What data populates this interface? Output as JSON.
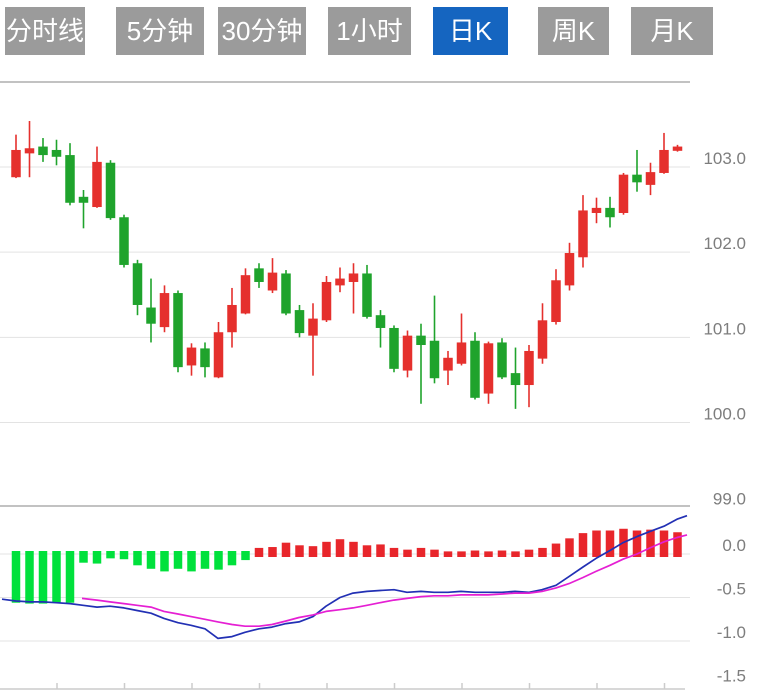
{
  "tabs": {
    "items": [
      {
        "label": "分时线",
        "active": false
      },
      {
        "label": "5分钟",
        "active": false
      },
      {
        "label": "30分钟",
        "active": false
      },
      {
        "label": "1小时",
        "active": false
      },
      {
        "label": "日K",
        "active": true
      },
      {
        "label": "周K",
        "active": false
      },
      {
        "label": "月K",
        "active": false
      }
    ]
  },
  "colors": {
    "tab_bg": "#9b9b9b",
    "tab_active_bg": "#1565c0",
    "candle_up": "#e5302d",
    "candle_down": "#1fa32c",
    "hist_up": "#e8262b",
    "hist_down": "#00e13c",
    "dif_line": "#2230b4",
    "dea_line": "#e51fd3",
    "gridline": "#e3e3e3",
    "pane_border": "#adadad",
    "axis_line": "#cccccc",
    "axis_label": "#7d7d7d"
  },
  "chart_data": {
    "type": "candlestick",
    "title": "日K candlestick chart with MACD sub-chart",
    "legend_position": "none",
    "grid": true,
    "panes": [
      {
        "name": "price",
        "ylim": [
          99.0,
          104.0
        ],
        "gridline_values": [
          103,
          102,
          101,
          100
        ],
        "axis_labels": [
          "103.0",
          "102.0",
          "101.0",
          "100.0",
          "99.0"
        ]
      },
      {
        "name": "macd",
        "ylim": [
          -1.55,
          0.45
        ],
        "gridline_values": [
          0,
          -0.5,
          -1.0
        ],
        "axis_labels": [
          "0.0",
          "-0.5",
          "-1.0",
          "-1.5"
        ]
      }
    ],
    "candles_ohlc": [
      [
        102.88,
        103.38,
        102.87,
        103.2
      ],
      [
        103.16,
        103.54,
        102.88,
        103.22
      ],
      [
        103.24,
        103.34,
        103.06,
        103.14
      ],
      [
        103.2,
        103.32,
        103.02,
        103.12
      ],
      [
        103.14,
        103.28,
        102.55,
        102.58
      ],
      [
        102.65,
        102.73,
        102.28,
        102.58
      ],
      [
        102.53,
        103.24,
        102.52,
        103.06
      ],
      [
        103.05,
        103.08,
        102.38,
        102.4
      ],
      [
        102.41,
        102.44,
        101.82,
        101.85
      ],
      [
        101.87,
        101.91,
        101.26,
        101.38
      ],
      [
        101.35,
        101.69,
        100.94,
        101.16
      ],
      [
        101.12,
        101.61,
        101.06,
        101.52
      ],
      [
        101.52,
        101.55,
        100.59,
        100.65
      ],
      [
        100.67,
        100.93,
        100.55,
        100.88
      ],
      [
        100.87,
        100.94,
        100.53,
        100.65
      ],
      [
        100.53,
        101.18,
        100.52,
        101.06
      ],
      [
        101.06,
        101.58,
        100.88,
        101.38
      ],
      [
        101.28,
        101.81,
        101.27,
        101.73
      ],
      [
        101.81,
        101.87,
        101.58,
        101.65
      ],
      [
        101.55,
        101.93,
        101.52,
        101.76
      ],
      [
        101.75,
        101.79,
        101.26,
        101.28
      ],
      [
        101.32,
        101.38,
        101.0,
        101.05
      ],
      [
        101.02,
        101.4,
        100.55,
        101.22
      ],
      [
        101.2,
        101.72,
        101.18,
        101.65
      ],
      [
        101.61,
        101.82,
        101.53,
        101.69
      ],
      [
        101.65,
        101.87,
        101.28,
        101.75
      ],
      [
        101.75,
        101.85,
        101.22,
        101.24
      ],
      [
        101.26,
        101.32,
        100.88,
        101.11
      ],
      [
        101.11,
        101.14,
        100.59,
        100.63
      ],
      [
        100.61,
        101.08,
        100.53,
        101.02
      ],
      [
        101.02,
        101.16,
        100.22,
        100.91
      ],
      [
        100.96,
        101.49,
        100.46,
        100.52
      ],
      [
        100.61,
        100.84,
        100.44,
        100.76
      ],
      [
        100.69,
        101.28,
        100.67,
        100.94
      ],
      [
        100.96,
        101.06,
        100.27,
        100.29
      ],
      [
        100.34,
        100.95,
        100.22,
        100.93
      ],
      [
        100.94,
        100.99,
        100.51,
        100.53
      ],
      [
        100.58,
        100.88,
        100.16,
        100.44
      ],
      [
        100.44,
        100.91,
        100.18,
        100.84
      ],
      [
        100.75,
        101.4,
        100.69,
        101.2
      ],
      [
        101.18,
        101.8,
        101.15,
        101.67
      ],
      [
        101.61,
        102.11,
        101.55,
        101.99
      ],
      [
        101.94,
        102.67,
        101.82,
        102.49
      ],
      [
        102.46,
        102.64,
        102.34,
        102.52
      ],
      [
        102.52,
        102.65,
        102.29,
        102.41
      ],
      [
        102.46,
        102.93,
        102.44,
        102.91
      ],
      [
        102.91,
        103.2,
        102.71,
        102.82
      ],
      [
        102.79,
        103.05,
        102.67,
        102.94
      ],
      [
        102.93,
        103.4,
        102.92,
        103.2
      ],
      [
        103.19,
        103.26,
        103.18,
        103.24
      ]
    ],
    "macd_histogram": [
      -0.56,
      -0.57,
      -0.57,
      -0.56,
      -0.56,
      -0.1,
      -0.11,
      -0.05,
      -0.06,
      -0.13,
      -0.17,
      -0.2,
      -0.17,
      -0.2,
      -0.17,
      -0.18,
      -0.13,
      -0.07,
      0.07,
      0.08,
      0.13,
      0.1,
      0.09,
      0.14,
      0.17,
      0.14,
      0.1,
      0.11,
      0.07,
      0.05,
      0.07,
      0.05,
      0.03,
      0.03,
      0.04,
      0.03,
      0.04,
      0.03,
      0.05,
      0.07,
      0.12,
      0.18,
      0.24,
      0.27,
      0.27,
      0.29,
      0.27,
      0.28,
      0.27,
      0.25
    ],
    "dif_line": [
      [
        2,
        -0.52
      ],
      [
        16,
        -0.54
      ],
      [
        30,
        -0.55
      ],
      [
        43,
        -0.55
      ],
      [
        56,
        -0.56
      ],
      [
        70,
        -0.57
      ],
      [
        83,
        -0.59
      ],
      [
        97,
        -0.61
      ],
      [
        110,
        -0.6
      ],
      [
        124,
        -0.62
      ],
      [
        137,
        -0.65
      ],
      [
        151,
        -0.68
      ],
      [
        164,
        -0.74
      ],
      [
        178,
        -0.79
      ],
      [
        191,
        -0.82
      ],
      [
        205,
        -0.86
      ],
      [
        218,
        -0.97
      ],
      [
        232,
        -0.95
      ],
      [
        245,
        -0.9
      ],
      [
        259,
        -0.86
      ],
      [
        272,
        -0.84
      ],
      [
        286,
        -0.8
      ],
      [
        299,
        -0.78
      ],
      [
        313,
        -0.72
      ],
      [
        326,
        -0.6
      ],
      [
        340,
        -0.5
      ],
      [
        353,
        -0.45
      ],
      [
        367,
        -0.43
      ],
      [
        380,
        -0.42
      ],
      [
        394,
        -0.41
      ],
      [
        407,
        -0.44
      ],
      [
        421,
        -0.43
      ],
      [
        434,
        -0.44
      ],
      [
        448,
        -0.44
      ],
      [
        461,
        -0.43
      ],
      [
        475,
        -0.44
      ],
      [
        488,
        -0.44
      ],
      [
        502,
        -0.44
      ],
      [
        515,
        -0.43
      ],
      [
        529,
        -0.44
      ],
      [
        542,
        -0.41
      ],
      [
        556,
        -0.36
      ],
      [
        569,
        -0.26
      ],
      [
        583,
        -0.15
      ],
      [
        596,
        -0.05
      ],
      [
        610,
        0.04
      ],
      [
        623,
        0.13
      ],
      [
        637,
        0.2
      ],
      [
        650,
        0.26
      ],
      [
        664,
        0.32
      ],
      [
        677,
        0.4
      ],
      [
        687,
        0.44
      ]
    ],
    "dea_line": [
      [
        82,
        -0.51
      ],
      [
        97,
        -0.53
      ],
      [
        110,
        -0.55
      ],
      [
        124,
        -0.57
      ],
      [
        137,
        -0.59
      ],
      [
        151,
        -0.61
      ],
      [
        164,
        -0.66
      ],
      [
        178,
        -0.69
      ],
      [
        191,
        -0.72
      ],
      [
        205,
        -0.75
      ],
      [
        218,
        -0.78
      ],
      [
        232,
        -0.81
      ],
      [
        245,
        -0.83
      ],
      [
        259,
        -0.83
      ],
      [
        272,
        -0.81
      ],
      [
        286,
        -0.77
      ],
      [
        299,
        -0.73
      ],
      [
        313,
        -0.7
      ],
      [
        326,
        -0.66
      ],
      [
        340,
        -0.64
      ],
      [
        353,
        -0.62
      ],
      [
        367,
        -0.59
      ],
      [
        380,
        -0.56
      ],
      [
        394,
        -0.53
      ],
      [
        407,
        -0.51
      ],
      [
        421,
        -0.49
      ],
      [
        434,
        -0.48
      ],
      [
        448,
        -0.48
      ],
      [
        461,
        -0.47
      ],
      [
        475,
        -0.47
      ],
      [
        488,
        -0.47
      ],
      [
        502,
        -0.46
      ],
      [
        515,
        -0.45
      ],
      [
        529,
        -0.45
      ],
      [
        542,
        -0.43
      ],
      [
        556,
        -0.39
      ],
      [
        569,
        -0.34
      ],
      [
        583,
        -0.27
      ],
      [
        596,
        -0.2
      ],
      [
        610,
        -0.13
      ],
      [
        623,
        -0.06
      ],
      [
        637,
        0.0
      ],
      [
        650,
        0.07
      ],
      [
        664,
        0.14
      ],
      [
        677,
        0.19
      ],
      [
        687,
        0.22
      ]
    ],
    "x_axis_tick_xs": [
      57,
      124.5,
      192,
      259.5,
      327,
      394.5,
      462,
      529.5,
      597,
      664.5
    ]
  }
}
